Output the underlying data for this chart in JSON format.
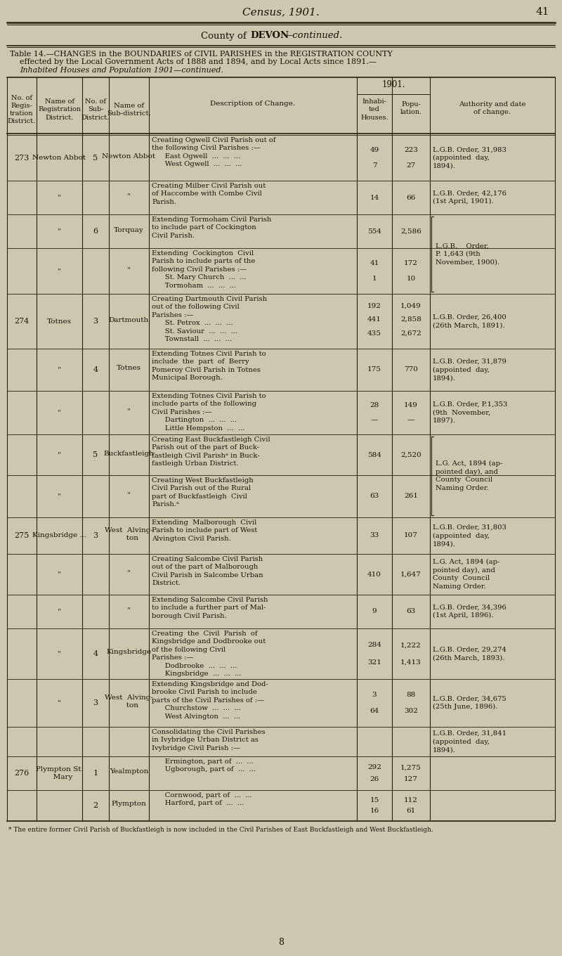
{
  "page_bg": "#cec8b0",
  "table_bg": "#cdc7af",
  "line_color": "#2a1f0a",
  "text_color": "#1a1008",
  "title1": "Census, 1901.",
  "title_page": "41",
  "county_line": "County of DEVON—continued.",
  "table_title1": "Table 14.—CHANGES in the BOUNDARIES of CIVIL PARISHES in the REGISTRATION COUNTY",
  "table_title2": "effected by the Local Government Acts of 1888 and 1894, and by Local Acts since 1891.—",
  "table_title3": "Inhabited Houses and Population 1901—continued.",
  "footnote": "* The entire former Civil Parish of Buckfastleigh is now included in the Civil Parishes of East Buckfastleigh and West Buckfastleigh.",
  "page_num": "8"
}
